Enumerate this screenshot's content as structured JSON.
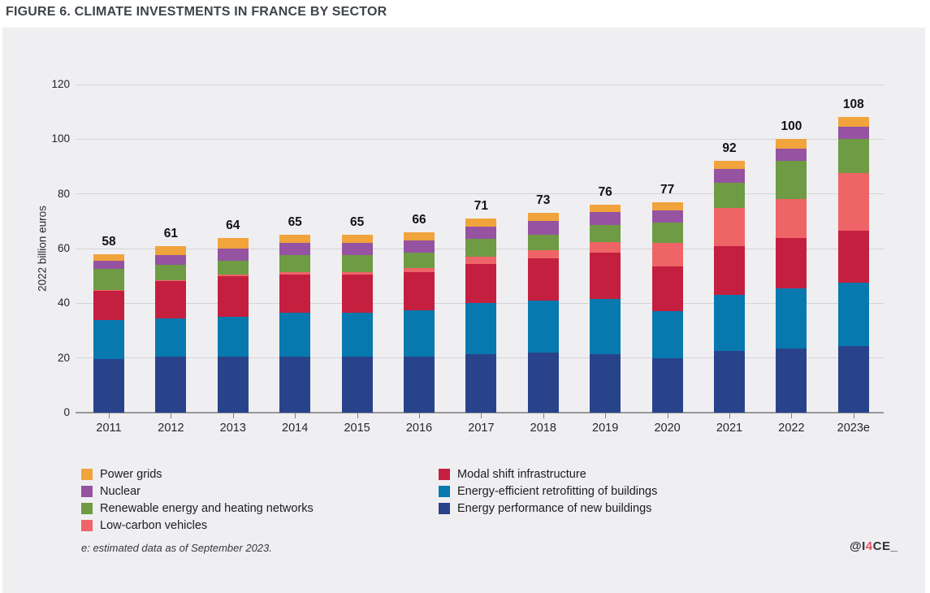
{
  "title": "FIGURE 6. CLIMATE INVESTMENTS IN FRANCE BY SECTOR",
  "footnote": "e: estimated data as of September 2023.",
  "logo": {
    "prefix": "@I",
    "accent": "4",
    "suffix": "CE_"
  },
  "chart_data": {
    "type": "bar",
    "stacked": true,
    "title": "FIGURE 6. CLIMATE INVESTMENTS IN FRANCE BY SECTOR",
    "ylabel": "2022 billion euros",
    "ylim": [
      0,
      120
    ],
    "y_ticks": [
      0,
      20,
      40,
      60,
      80,
      100,
      120
    ],
    "grid": "horizontal",
    "categories": [
      "2011",
      "2012",
      "2013",
      "2014",
      "2015",
      "2016",
      "2017",
      "2018",
      "2019",
      "2020",
      "2021",
      "2022",
      "2023e"
    ],
    "totals": [
      58,
      61,
      64,
      65,
      65,
      66,
      71,
      73,
      76,
      77,
      92,
      100,
      108
    ],
    "series": [
      {
        "key": "new_buildings",
        "name": "Energy performance of new buildings",
        "color": "#29438b",
        "values": [
          19.5,
          20.5,
          20.5,
          20.5,
          20.5,
          20.5,
          21.5,
          22,
          21.5,
          20,
          22.5,
          23.5,
          24.5
        ]
      },
      {
        "key": "retrofitting",
        "name": "Energy-efficient retrofitting of buildings",
        "color": "#0779ae",
        "values": [
          14.5,
          14,
          14.5,
          16,
          16,
          17,
          18.5,
          19,
          20,
          17,
          20.5,
          22,
          23
        ]
      },
      {
        "key": "modal_shift",
        "name": "Modal shift infrastructure",
        "color": "#c51f3f",
        "values": [
          10.5,
          13.5,
          15,
          14,
          14,
          14,
          14.5,
          15.5,
          17,
          16.5,
          18,
          18.5,
          19
        ]
      },
      {
        "key": "low_carbon",
        "name": "Low-carbon vehicles",
        "color": "#ee6467",
        "values": [
          0.5,
          0.5,
          0.5,
          1,
          1,
          1.5,
          2.5,
          3,
          4,
          8.5,
          14,
          14,
          21
        ]
      },
      {
        "key": "renewables",
        "name": "Renewable energy and heating networks",
        "color": "#6e9b43",
        "values": [
          7.5,
          5.5,
          5,
          6,
          6,
          5.5,
          6.5,
          5.5,
          6,
          7.5,
          9,
          14,
          12.5
        ]
      },
      {
        "key": "nuclear",
        "name": "Nuclear",
        "color": "#9553a1",
        "values": [
          3,
          3.5,
          4.5,
          4.5,
          4.5,
          4.5,
          4.5,
          5,
          5,
          4.5,
          5,
          4.5,
          4.5
        ]
      },
      {
        "key": "power_grids",
        "name": "Power grids",
        "color": "#f1a33c",
        "values": [
          2.5,
          3.5,
          4,
          3,
          3,
          3,
          3,
          3,
          2.5,
          3,
          3,
          3.5,
          3.5
        ]
      }
    ],
    "legend": {
      "left": [
        "power_grids",
        "nuclear",
        "renewables",
        "low_carbon"
      ],
      "right": [
        "modal_shift",
        "retrofitting",
        "new_buildings"
      ]
    }
  }
}
